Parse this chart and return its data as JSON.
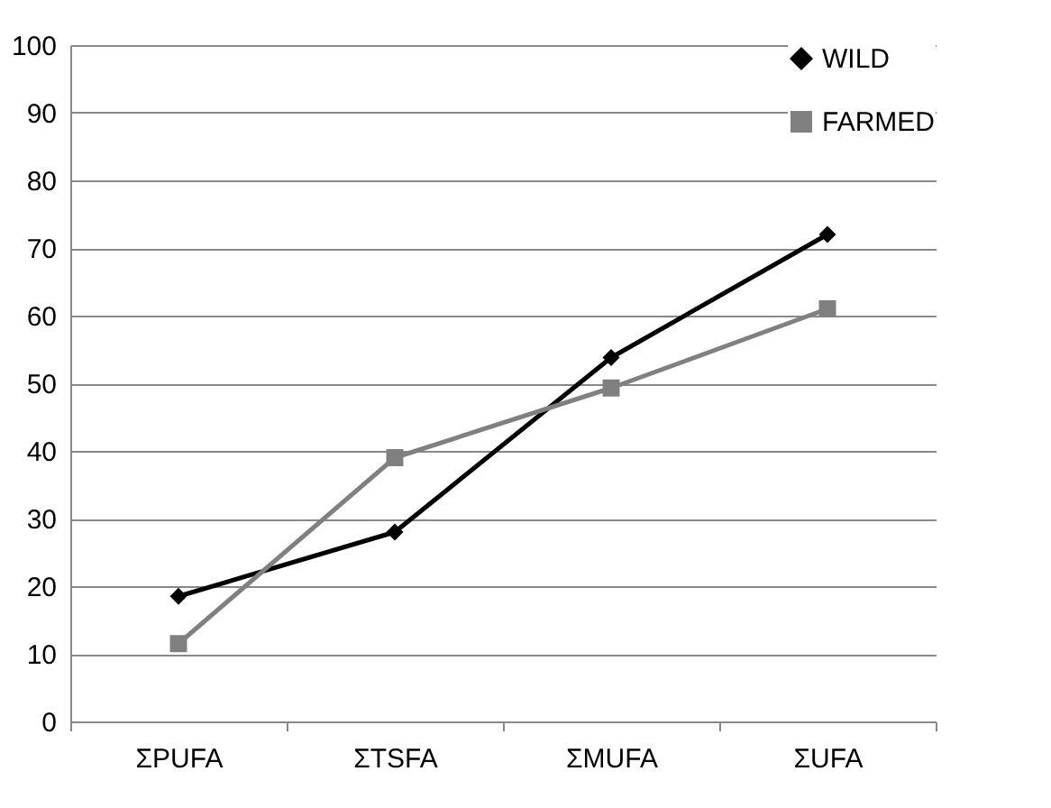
{
  "chart_data": {
    "type": "line",
    "categories": [
      "ΣPUFA",
      "ΣTSFA",
      "ΣMUFA",
      "ΣUFA"
    ],
    "series": [
      {
        "name": "WILD",
        "color": "#000000",
        "marker": "diamond",
        "values": [
          18.5,
          28,
          53.8,
          72
        ]
      },
      {
        "name": "FARMED",
        "color": "#808080",
        "marker": "square",
        "values": [
          11.5,
          39,
          49.3,
          61
        ]
      }
    ],
    "ylim": [
      0,
      100
    ],
    "yticks": [
      0,
      10,
      20,
      30,
      40,
      50,
      60,
      70,
      80,
      90,
      100
    ],
    "grid": "y",
    "legend": "top right"
  }
}
